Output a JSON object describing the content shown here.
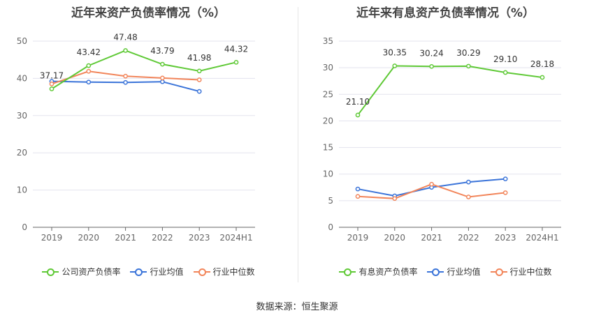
{
  "source_label": "数据来源：恒生聚源",
  "chart_data": [
    {
      "type": "line",
      "title": "近年来资产负债率情况（%）",
      "categories": [
        "2019",
        "2020",
        "2021",
        "2022",
        "2023",
        "2024H1"
      ],
      "ylim": [
        0,
        50
      ],
      "yticks": [
        0,
        10,
        20,
        30,
        40,
        50
      ],
      "grid": true,
      "legend_position": "bottom",
      "series": [
        {
          "name": "公司资产负债率",
          "color": "#5fc936",
          "values": [
            37.17,
            43.42,
            47.48,
            43.79,
            41.98,
            44.32
          ],
          "labels": [
            "37.17",
            "43.42",
            "47.48",
            "43.79",
            "41.98",
            "44.32"
          ]
        },
        {
          "name": "行业均值",
          "color": "#3b74d9",
          "values": [
            39.2,
            39.0,
            38.9,
            39.1,
            36.5,
            null
          ]
        },
        {
          "name": "行业中位数",
          "color": "#f2855a",
          "values": [
            38.5,
            41.9,
            40.6,
            40.1,
            39.6,
            null
          ]
        }
      ]
    },
    {
      "type": "line",
      "title": "近年来有息资产负债率情况（%）",
      "categories": [
        "2019",
        "2020",
        "2021",
        "2022",
        "2023",
        "2024H1"
      ],
      "ylim": [
        0,
        35
      ],
      "yticks": [
        0,
        5,
        10,
        15,
        20,
        25,
        30,
        35
      ],
      "grid": true,
      "legend_position": "bottom",
      "series": [
        {
          "name": "有息资产负债率",
          "color": "#5fc936",
          "values": [
            21.1,
            30.35,
            30.24,
            30.29,
            29.1,
            28.18
          ],
          "labels": [
            "21.10",
            "30.35",
            "30.24",
            "30.29",
            "29.10",
            "28.18"
          ]
        },
        {
          "name": "行业均值",
          "color": "#3b74d9",
          "values": [
            7.2,
            5.9,
            7.5,
            8.5,
            9.1,
            null
          ]
        },
        {
          "name": "行业中位数",
          "color": "#f2855a",
          "values": [
            5.8,
            5.4,
            8.1,
            5.7,
            6.5,
            null
          ]
        }
      ]
    }
  ]
}
